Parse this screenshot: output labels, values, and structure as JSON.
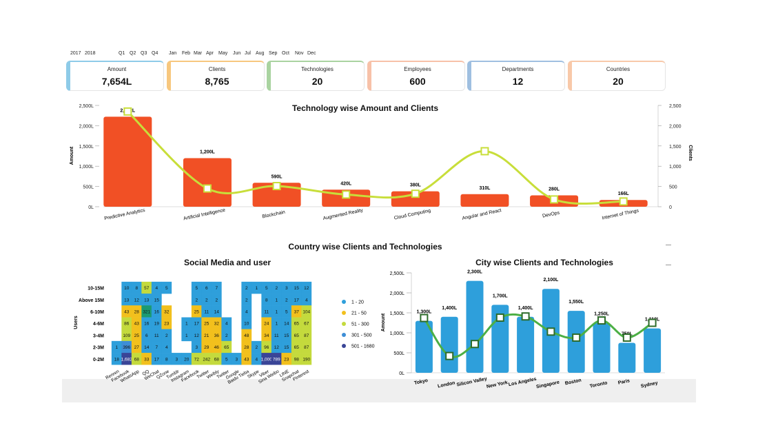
{
  "filters": {
    "years": [
      "2017",
      "2018"
    ],
    "quarters": [
      "Q1",
      "Q2",
      "Q3",
      "Q4"
    ],
    "months": [
      "Jan",
      "Feb",
      "Mar",
      "Apr",
      "May",
      "Jun",
      "Jul",
      "Aug",
      "Sep",
      "Oct",
      "Nov",
      "Dec"
    ]
  },
  "kpis": [
    {
      "label": "Amount",
      "value": "7,654L",
      "color": "#8ecbe8"
    },
    {
      "label": "Clients",
      "value": "8,765",
      "color": "#f7c77e"
    },
    {
      "label": "Technologies",
      "value": "20",
      "color": "#a9d3a0"
    },
    {
      "label": "Employees",
      "value": "600",
      "color": "#f7c1a8"
    },
    {
      "label": "Departments",
      "value": "12",
      "color": "#9fbfe0"
    },
    {
      "label": "Countries",
      "value": "20",
      "color": "#f8c9a9"
    }
  ],
  "section_title": "Country wise Clients and Technologies",
  "colors": {
    "bar_orange": "#f15025",
    "line_lime": "#c8de3a",
    "bar_blue": "#2e9fdb",
    "line_green": "#4caf45",
    "h1": "#2e9fdb",
    "h2": "#f2c01d",
    "h3": "#c4da3d",
    "h4": "#3e8ed6",
    "h5": "#3a4597",
    "teal": "#1b9a72"
  },
  "chart_data": [
    {
      "type": "bar",
      "title": "Technology wise Amount and Clients",
      "ylabel": "Amount",
      "y2label": "Clients",
      "categories": [
        "Predictive Analytics",
        "Artificial Intelligence",
        "Blockchain",
        "Augmented Reality",
        "Cloud Computing",
        "Angular and React",
        "DevOps",
        "Internet of Things"
      ],
      "series": [
        {
          "name": "Amount",
          "values": [
            2222,
            1200,
            590,
            420,
            380,
            310,
            280,
            166
          ],
          "labels": [
            "2,222L",
            "1,200L",
            "590L",
            "420L",
            "380L",
            "310L",
            "280L",
            "166L"
          ]
        },
        {
          "name": "Clients",
          "values": [
            2350,
            450,
            510,
            300,
            320,
            1370,
            180,
            130
          ]
        }
      ],
      "yticks": [
        "0L",
        "500L",
        "1,000L",
        "1,500L",
        "2,000L",
        "2,500L"
      ],
      "y2ticks": [
        "0",
        "500",
        "1,000",
        "1,500",
        "2,000",
        "2,500"
      ],
      "ylim": [
        0,
        2500
      ]
    },
    {
      "type": "heatmap",
      "title": "Social Media and user",
      "ylabel": "Users",
      "x": [
        "Renren",
        "Facebook",
        "WhatsApp",
        "QQ",
        "WeChat",
        "QZone",
        "Tumblr",
        "Instagram",
        "Facebook",
        "Twitter",
        "Weibly",
        "Twitter",
        "Google",
        "Baidu Tieba",
        "Skype",
        "Viber",
        "Sina Weibo",
        "LINE",
        "Snapchat",
        "Pinterest"
      ],
      "y": [
        "10-15M",
        "Above 15M",
        "6-10M",
        "4-6M",
        "3-4M",
        "2-3M",
        "0-2M"
      ],
      "values": [
        [
          null,
          10,
          8,
          57,
          4,
          5,
          null,
          null,
          5,
          6,
          7,
          null,
          null,
          2,
          1,
          5,
          2,
          3,
          15,
          12
        ],
        [
          null,
          13,
          12,
          13,
          15,
          null,
          null,
          null,
          2,
          2,
          2,
          null,
          null,
          2,
          null,
          8,
          1,
          2,
          17,
          4
        ],
        [
          null,
          43,
          28,
          321,
          16,
          32,
          null,
          null,
          25,
          11,
          14,
          null,
          null,
          4,
          null,
          11,
          1,
          5,
          37,
          104
        ],
        [
          null,
          86,
          43,
          16,
          19,
          23,
          null,
          1,
          17,
          25,
          32,
          4,
          null,
          10,
          null,
          24,
          1,
          14,
          65,
          67
        ],
        [
          null,
          109,
          25,
          6,
          11,
          2,
          null,
          1,
          12,
          21,
          36,
          2,
          null,
          48,
          null,
          34,
          11,
          15,
          65,
          87
        ],
        [
          1,
          396,
          27,
          14,
          7,
          4,
          null,
          null,
          3,
          29,
          46,
          65,
          null,
          28,
          2,
          96,
          12,
          15,
          65,
          87
        ],
        [
          18,
          1682,
          68,
          33,
          17,
          8,
          3,
          20,
          72,
          242,
          68,
          5,
          3,
          43,
          4,
          1000,
          789,
          23,
          98,
          190
        ]
      ],
      "display": [
        [
          null,
          "10",
          "8",
          "57",
          "4",
          "5",
          null,
          null,
          "5",
          "6",
          "7",
          null,
          null,
          "2",
          "1",
          "5",
          "2",
          "3",
          "15",
          "12"
        ],
        [
          null,
          "13",
          "12",
          "13",
          "15",
          null,
          null,
          null,
          "2",
          "2",
          "2",
          null,
          null,
          "2",
          null,
          "8",
          "1",
          "2",
          "17",
          "4"
        ],
        [
          null,
          "43",
          "28",
          "321",
          "16",
          "32",
          null,
          null,
          "25",
          "11",
          "14",
          null,
          null,
          "4",
          null,
          "11",
          "1",
          "5",
          "37",
          "104"
        ],
        [
          null,
          "86",
          "43",
          "16",
          "19",
          "23",
          null,
          "1",
          "17",
          "25",
          "32",
          "4",
          null,
          "10",
          null,
          "24",
          "1",
          "14",
          "65",
          "67"
        ],
        [
          null,
          "109",
          "25",
          "6",
          "11",
          "2",
          null,
          "1",
          "12",
          "21",
          "36",
          "2",
          null,
          "48",
          null,
          "34",
          "11",
          "15",
          "65",
          "87"
        ],
        [
          "1",
          "396",
          "27",
          "14",
          "7",
          "4",
          null,
          null,
          "3",
          "29",
          "46",
          "65",
          null,
          "28",
          "2",
          "96",
          "12",
          "15",
          "65",
          "87"
        ],
        [
          "18",
          "1,682",
          "68",
          "33",
          "17",
          "8",
          "3",
          "20",
          "72",
          "242",
          "68",
          "5",
          "3",
          "43",
          "4",
          "1,000",
          "789",
          "23",
          "98",
          "190"
        ]
      ],
      "legend": [
        {
          "label": "1 - 20",
          "color": "#2e9fdb"
        },
        {
          "label": "21 - 50",
          "color": "#f2c01d"
        },
        {
          "label": "51 - 300",
          "color": "#c4da3d"
        },
        {
          "label": "301 - 500",
          "color": "#3e8ed6"
        },
        {
          "label": "501 - 1680",
          "color": "#3a4597"
        }
      ]
    },
    {
      "type": "bar",
      "title": "City wise Clients and Technologies",
      "ylabel": "Amount",
      "categories": [
        "Tokyo",
        "London",
        "Silicon Valley",
        "New York",
        "Los Angeles",
        "Singapore",
        "Boston",
        "Toronto",
        "Paris",
        "Sydney"
      ],
      "series": [
        {
          "name": "Amount",
          "values": [
            1300,
            1400,
            2300,
            1700,
            1400,
            2100,
            1550,
            1250,
            750,
            1110
          ],
          "labels": [
            "1,300L",
            "1,400L",
            "2,300L",
            "1,700L",
            "1,400L",
            "2,100L",
            "1,550L",
            "1,250L",
            "750L",
            "1,110L"
          ]
        },
        {
          "name": "Clients",
          "values": [
            1370,
            420,
            720,
            1380,
            1410,
            1030,
            880,
            1310,
            880,
            1250
          ]
        }
      ],
      "yticks": [
        "0L",
        "500L",
        "1,000L",
        "1,500L",
        "2,000L",
        "2,500L"
      ],
      "ylim": [
        0,
        2500
      ]
    }
  ]
}
